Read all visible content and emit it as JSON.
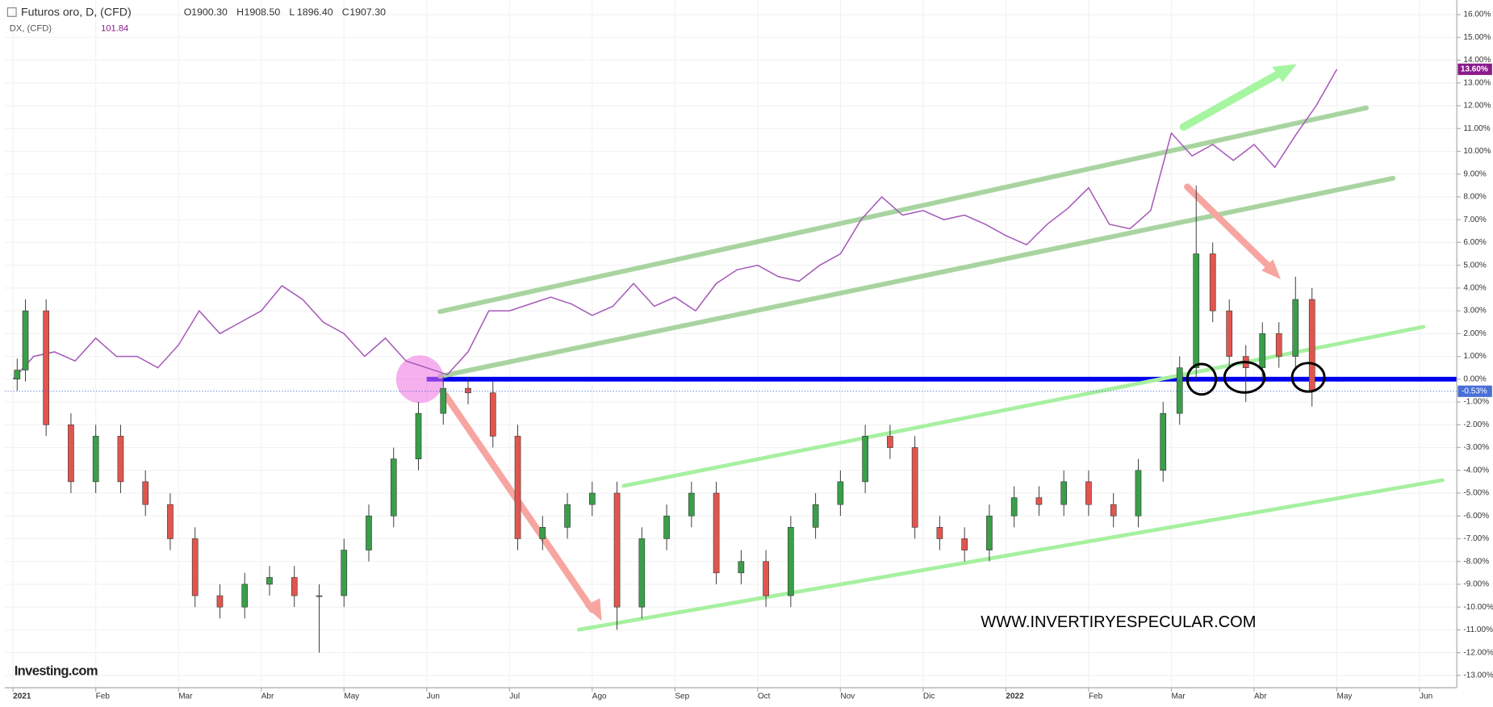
{
  "chart_data": {
    "type": "candlestick",
    "header": {
      "title": "Futuros oro, D, (CFD)",
      "ohlc": [
        {
          "label": "O",
          "value": "1900.30"
        },
        {
          "label": "H",
          "value": "1908.50"
        },
        {
          "label": "L",
          "value": "1896.40"
        },
        {
          "label": "C",
          "value": "1907.30"
        }
      ],
      "overlay_title": "DX, (CFD)",
      "overlay_value": "101.84"
    },
    "watermark": "WWW.INVERTIRYESPECULAR.COM",
    "logo": "Investing.com",
    "xlim": [
      -0.1,
      17.45
    ],
    "xticks": [
      {
        "value": 0,
        "label": "2021"
      },
      {
        "value": 1,
        "label": "Feb"
      },
      {
        "value": 2,
        "label": "Mar"
      },
      {
        "value": 3,
        "label": "Abr"
      },
      {
        "value": 4,
        "label": "May"
      },
      {
        "value": 5,
        "label": "Jun"
      },
      {
        "value": 6,
        "label": "Jul"
      },
      {
        "value": 7,
        "label": "Ago"
      },
      {
        "value": 8,
        "label": "Sep"
      },
      {
        "value": 9,
        "label": "Oct"
      },
      {
        "value": 10,
        "label": "Nov"
      },
      {
        "value": 11,
        "label": "Dic"
      },
      {
        "value": 12,
        "label": "2022"
      },
      {
        "value": 13,
        "label": "Feb"
      },
      {
        "value": 14,
        "label": "Mar"
      },
      {
        "value": 15,
        "label": "Abr"
      },
      {
        "value": 16,
        "label": "May"
      },
      {
        "value": 17,
        "label": "Jun"
      }
    ],
    "ylim": [
      -13.54,
      16.63
    ],
    "yticks": [
      {
        "value": 16,
        "label": "16.00%"
      },
      {
        "value": 15,
        "label": "15.00%"
      },
      {
        "value": 14,
        "label": "14.00%"
      },
      {
        "value": 13,
        "label": "13.00%"
      },
      {
        "value": 12,
        "label": "12.00%"
      },
      {
        "value": 11,
        "label": "11.00%"
      },
      {
        "value": 10,
        "label": "10.00%"
      },
      {
        "value": 9,
        "label": "9.00%"
      },
      {
        "value": 8,
        "label": "8.00%"
      },
      {
        "value": 7,
        "label": "7.00%"
      },
      {
        "value": 6,
        "label": "6.00%"
      },
      {
        "value": 5,
        "label": "5.00%"
      },
      {
        "value": 4,
        "label": "4.00%"
      },
      {
        "value": 3,
        "label": "3.00%"
      },
      {
        "value": 2,
        "label": "2.00%"
      },
      {
        "value": 1,
        "label": "1.00%"
      },
      {
        "value": 0,
        "label": "0.00%"
      },
      {
        "value": -1,
        "label": "-1.00%"
      },
      {
        "value": -2,
        "label": "-2.00%"
      },
      {
        "value": -3,
        "label": "-3.00%"
      },
      {
        "value": -4,
        "label": "-4.00%"
      },
      {
        "value": -5,
        "label": "-5.00%"
      },
      {
        "value": -6,
        "label": "-6.00%"
      },
      {
        "value": -7,
        "label": "-7.00%"
      },
      {
        "value": -8,
        "label": "-8.00%"
      },
      {
        "value": -9,
        "label": "-9.00%"
      },
      {
        "value": -10,
        "label": "-10.00%"
      },
      {
        "value": -11,
        "label": "-11.00%"
      },
      {
        "value": -12,
        "label": "-12.00%"
      },
      {
        "value": -13,
        "label": "-13.00%"
      }
    ],
    "grid": true,
    "candles": {
      "up_color": "#3a9e4a",
      "down_color": "#e0564e",
      "last_value": -0.53,
      "last_label": "-0.53%",
      "x": [
        0.05,
        0.15,
        0.4,
        0.7,
        1.0,
        1.3,
        1.6,
        1.9,
        2.2,
        2.5,
        2.8,
        3.1,
        3.4,
        3.7,
        4.0,
        4.3,
        4.6,
        4.9,
        5.2,
        5.5,
        5.8,
        6.1,
        6.4,
        6.7,
        7.0,
        7.3,
        7.6,
        7.9,
        8.2,
        8.5,
        8.8,
        9.1,
        9.4,
        9.7,
        10.0,
        10.3,
        10.6,
        10.9,
        11.2,
        11.5,
        11.8,
        12.1,
        12.4,
        12.7,
        13.0,
        13.3,
        13.6,
        13.9,
        14.1,
        14.3,
        14.5,
        14.7,
        14.9,
        15.1,
        15.3,
        15.5,
        15.7
      ],
      "open": [
        0.0,
        0.4,
        3.0,
        -2.0,
        -4.5,
        -2.5,
        -4.5,
        -5.5,
        -7.0,
        -9.5,
        -10.0,
        -9.0,
        -8.7,
        -9.5,
        -9.5,
        -7.5,
        -6.0,
        -3.5,
        -1.5,
        -0.4,
        -0.6,
        -2.5,
        -7.0,
        -6.5,
        -5.5,
        -5.0,
        -10.0,
        -7.0,
        -6.0,
        -5.0,
        -8.5,
        -8.0,
        -9.5,
        -6.5,
        -5.5,
        -4.5,
        -2.5,
        -3.0,
        -6.5,
        -7.0,
        -7.5,
        -6.0,
        -5.2,
        -5.5,
        -4.5,
        -5.5,
        -6.0,
        -4.0,
        -1.5,
        0.5,
        5.5,
        3.0,
        1.0,
        0.5,
        2.0,
        1.0,
        3.5
      ],
      "high": [
        0.9,
        3.5,
        3.5,
        -1.5,
        -2.0,
        -2.0,
        -4.0,
        -5.0,
        -6.5,
        -9.0,
        -8.5,
        -8.2,
        -8.2,
        -9.0,
        -7.0,
        -5.5,
        -3.0,
        -1.0,
        0.1,
        0.1,
        -0.1,
        -2.0,
        -6.0,
        -5.0,
        -4.5,
        -4.5,
        -6.5,
        -5.5,
        -4.5,
        -4.5,
        -7.5,
        -7.5,
        -6.0,
        -5.0,
        -4.0,
        -2.0,
        -2.0,
        -2.5,
        -6.0,
        -6.5,
        -5.5,
        -4.7,
        -4.7,
        -4.0,
        -4.0,
        -5.0,
        -3.5,
        -1.0,
        1.0,
        8.5,
        6.0,
        3.5,
        1.5,
        2.5,
        2.5,
        4.5,
        4.0
      ],
      "low": [
        -0.5,
        -0.1,
        -2.5,
        -5.0,
        -5.0,
        -5.0,
        -6.0,
        -7.5,
        -10.0,
        -10.5,
        -10.5,
        -9.5,
        -10.0,
        -12.0,
        -10.0,
        -8.0,
        -6.5,
        -4.0,
        -2.0,
        -1.1,
        -3.0,
        -7.5,
        -7.5,
        -7.0,
        -6.0,
        -11.0,
        -10.5,
        -7.5,
        -6.5,
        -9.0,
        -9.0,
        -10.0,
        -10.0,
        -7.0,
        -6.0,
        -5.0,
        -3.5,
        -7.0,
        -7.5,
        -8.0,
        -8.0,
        -6.5,
        -6.0,
        -6.0,
        -6.0,
        -6.5,
        -6.5,
        -4.5,
        -2.0,
        0.0,
        2.5,
        0.5,
        -1.0,
        0.0,
        0.5,
        0.5,
        -1.2
      ],
      "close": [
        0.4,
        3.0,
        -2.0,
        -4.5,
        -2.5,
        -4.5,
        -5.5,
        -7.0,
        -9.5,
        -10.0,
        -9.0,
        -8.7,
        -9.5,
        -9.5,
        -7.5,
        -6.0,
        -3.5,
        -1.5,
        -0.4,
        -0.6,
        -2.5,
        -7.0,
        -6.5,
        -5.5,
        -5.0,
        -10.0,
        -7.0,
        -6.0,
        -5.0,
        -8.5,
        -8.0,
        -9.5,
        -6.5,
        -5.5,
        -4.5,
        -2.5,
        -3.0,
        -6.5,
        -7.0,
        -7.5,
        -6.0,
        -5.2,
        -5.5,
        -4.5,
        -5.5,
        -6.0,
        -4.0,
        -1.5,
        0.5,
        5.5,
        3.0,
        1.0,
        0.5,
        2.0,
        1.0,
        3.5,
        -0.53
      ]
    },
    "series": [
      {
        "name": "DX, (CFD)",
        "color": "#a55ab8",
        "last_value": 13.6,
        "last_label": "13.60%",
        "x": [
          0,
          0.25,
          0.5,
          0.75,
          1.0,
          1.25,
          1.5,
          1.75,
          2.0,
          2.25,
          2.5,
          2.75,
          3.0,
          3.25,
          3.5,
          3.75,
          4.0,
          4.25,
          4.5,
          4.75,
          5.0,
          5.25,
          5.5,
          5.75,
          6.0,
          6.25,
          6.5,
          6.75,
          7.0,
          7.25,
          7.5,
          7.75,
          8.0,
          8.25,
          8.5,
          8.75,
          9.0,
          9.25,
          9.5,
          9.75,
          10.0,
          10.25,
          10.5,
          10.75,
          11.0,
          11.25,
          11.5,
          11.75,
          12.0,
          12.25,
          12.5,
          12.75,
          13.0,
          13.25,
          13.5,
          13.75,
          14.0,
          14.25,
          14.5,
          14.75,
          15.0,
          15.25,
          15.5,
          15.75,
          16.0
        ],
        "values": [
          0,
          1.0,
          1.2,
          0.8,
          1.8,
          1.0,
          1.0,
          0.5,
          1.5,
          3.0,
          2.0,
          2.5,
          3.0,
          4.1,
          3.5,
          2.5,
          2.0,
          1.0,
          1.8,
          0.8,
          0.5,
          0.2,
          1.2,
          3.0,
          3.0,
          3.3,
          3.6,
          3.3,
          2.8,
          3.2,
          4.2,
          3.2,
          3.6,
          3.0,
          4.2,
          4.8,
          5.0,
          4.5,
          4.3,
          5.0,
          5.5,
          7.0,
          8.0,
          7.2,
          7.4,
          7.0,
          7.2,
          6.8,
          6.3,
          5.9,
          6.8,
          7.5,
          8.4,
          6.8,
          6.6,
          7.4,
          10.8,
          9.8,
          10.3,
          9.6,
          10.3,
          9.3,
          10.7,
          12.0,
          13.6
        ]
      }
    ]
  }
}
